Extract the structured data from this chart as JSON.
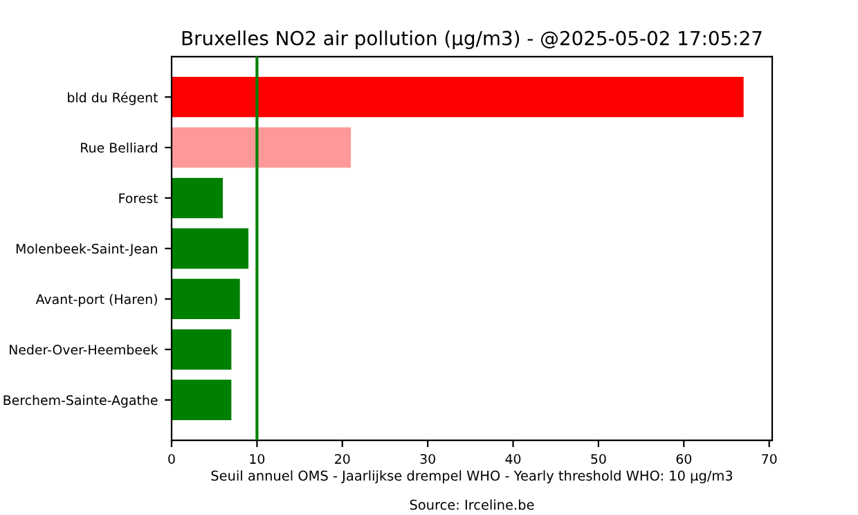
{
  "chart_data": {
    "type": "bar",
    "orientation": "horizontal",
    "title": "Bruxelles NO2 air pollution (µg/m3) - @2025-05-02 17:05:27",
    "xlabel": "Seuil annuel OMS - Jaarlijkse drempel WHO - Yearly threshold WHO: 10 µg/m3",
    "annotations": [
      "Source: Irceline.be"
    ],
    "categories": [
      "bld du Régent",
      "Rue Belliard",
      "Forest",
      "Molenbeek-Saint-Jean",
      "Avant-port (Haren)",
      "Neder-Over-Heembeek",
      "Berchem-Sainte-Agathe"
    ],
    "values": [
      67,
      21,
      6,
      9,
      8,
      7,
      7
    ],
    "colors": [
      "#ff0000",
      "#ff9999",
      "#008000",
      "#008000",
      "#008000",
      "#008000",
      "#008000"
    ],
    "xlim": [
      0,
      70.35
    ],
    "xticks": [
      0,
      10,
      20,
      30,
      40,
      50,
      60,
      70
    ],
    "ref_lines": [
      {
        "axis": "x",
        "value": 10,
        "color": "#008000"
      }
    ],
    "grid": false,
    "legend": false
  }
}
